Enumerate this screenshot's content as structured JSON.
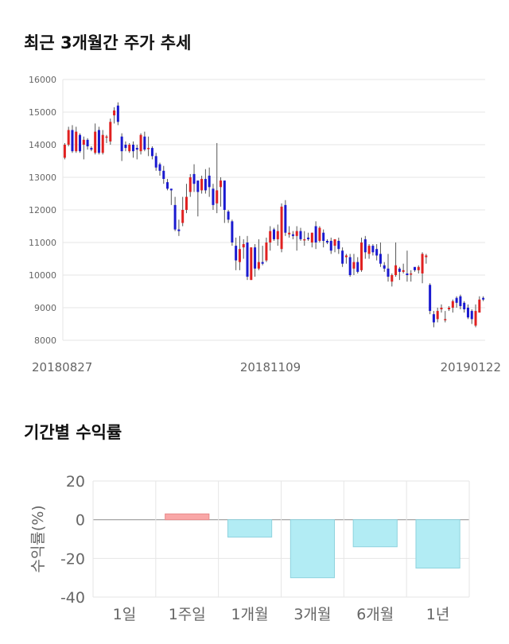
{
  "price_section": {
    "title": "최근 3개월간 주가 추세"
  },
  "returns_section": {
    "title": "기간별 수익률"
  },
  "colors": {
    "up": "#e02020",
    "down": "#1a1ad0",
    "wick": "#555555",
    "grid": "#e6e6e6",
    "bar_positive": "#f9a7a7",
    "bar_negative": "#b2ecf4"
  },
  "chart_data": [
    {
      "type": "candlestick",
      "title": "최근 3개월간 주가 추세",
      "ylim": [
        8000,
        16000
      ],
      "yticks": [
        8000,
        9000,
        10000,
        11000,
        12000,
        13000,
        14000,
        15000,
        16000
      ],
      "xtick_labels": [
        "20180827",
        "20181109",
        "20190122"
      ],
      "candles": [
        [
          13600,
          14000,
          13550,
          14050
        ],
        [
          14000,
          14450,
          13950,
          14550
        ],
        [
          14450,
          13800,
          13750,
          14600
        ],
        [
          13800,
          14400,
          13750,
          14550
        ],
        [
          14300,
          13800,
          13750,
          14350
        ],
        [
          14000,
          14150,
          13550,
          14250
        ],
        [
          14150,
          13950,
          13850,
          14200
        ],
        [
          13900,
          13850,
          13800,
          13950
        ],
        [
          13750,
          14400,
          13700,
          14650
        ],
        [
          14450,
          13750,
          13700,
          14550
        ],
        [
          13750,
          14300,
          13700,
          14450
        ],
        [
          14250,
          14250,
          14050,
          14300
        ],
        [
          14100,
          14700,
          14000,
          14800
        ],
        [
          14900,
          15050,
          14650,
          15150
        ],
        [
          15200,
          14700,
          14600,
          15300
        ],
        [
          14250,
          13800,
          13500,
          14350
        ],
        [
          14000,
          13900,
          13800,
          14100
        ],
        [
          13800,
          14000,
          13750,
          14050
        ],
        [
          14000,
          13800,
          13600,
          14100
        ],
        [
          13900,
          13850,
          13550,
          14000
        ],
        [
          13800,
          14300,
          13700,
          14350
        ],
        [
          14250,
          13850,
          13800,
          14400
        ],
        [
          13900,
          13900,
          13650,
          14250
        ],
        [
          13900,
          13650,
          13550,
          13950
        ],
        [
          13650,
          13300,
          13200,
          13750
        ],
        [
          13400,
          13200,
          13050,
          13450
        ],
        [
          13200,
          12950,
          12800,
          13350
        ],
        [
          12850,
          12650,
          12600,
          12950
        ],
        [
          12650,
          12600,
          12150,
          12650
        ],
        [
          12150,
          11400,
          11350,
          12400
        ],
        [
          11400,
          11350,
          11200,
          11700
        ],
        [
          11600,
          12000,
          11500,
          12400
        ],
        [
          12000,
          12400,
          11900,
          12800
        ],
        [
          12550,
          13000,
          12400,
          13100
        ],
        [
          13100,
          12800,
          12550,
          13400
        ],
        [
          12900,
          12550,
          11800,
          12900
        ],
        [
          12600,
          12950,
          12500,
          13050
        ],
        [
          12950,
          12600,
          12500,
          13250
        ],
        [
          13050,
          12700,
          12400,
          13300
        ],
        [
          12650,
          12150,
          12000,
          12800
        ],
        [
          12200,
          12600,
          11900,
          14050
        ],
        [
          12700,
          12900,
          12100,
          13000
        ],
        [
          12900,
          12000,
          11600,
          12900
        ],
        [
          11950,
          11700,
          11600,
          12000
        ],
        [
          11650,
          11000,
          10900,
          11700
        ],
        [
          10900,
          10450,
          10150,
          11150
        ],
        [
          10400,
          10800,
          10150,
          11200
        ],
        [
          10850,
          10950,
          10500,
          11100
        ],
        [
          11000,
          9950,
          9850,
          11200
        ],
        [
          9850,
          10850,
          9850,
          10850
        ],
        [
          10850,
          10200,
          9950,
          10950
        ],
        [
          10200,
          10400,
          10150,
          11100
        ],
        [
          10400,
          10350,
          10300,
          10900
        ],
        [
          10450,
          11000,
          10400,
          11150
        ],
        [
          11000,
          11350,
          10750,
          11500
        ],
        [
          11400,
          11100,
          11050,
          11450
        ],
        [
          11100,
          11350,
          10900,
          11550
        ],
        [
          10800,
          12100,
          10700,
          12200
        ],
        [
          12150,
          11300,
          11200,
          12300
        ],
        [
          11250,
          11300,
          11150,
          11500
        ],
        [
          11250,
          11200,
          11100,
          11350
        ],
        [
          11200,
          11350,
          10750,
          11500
        ],
        [
          11350,
          11100,
          11050,
          11450
        ],
        [
          11100,
          11100,
          10900,
          11350
        ],
        [
          11150,
          11100,
          11050,
          11300
        ],
        [
          11000,
          11300,
          10850,
          11300
        ],
        [
          11500,
          11000,
          10800,
          11650
        ],
        [
          11050,
          11450,
          11000,
          11500
        ],
        [
          11300,
          11050,
          10850,
          11400
        ],
        [
          11050,
          11000,
          10950,
          11100
        ],
        [
          11050,
          10750,
          10650,
          11150
        ],
        [
          10900,
          11100,
          10700,
          11100
        ],
        [
          11050,
          10800,
          10650,
          11150
        ],
        [
          10750,
          10350,
          10250,
          10850
        ],
        [
          10550,
          10600,
          10350,
          10650
        ],
        [
          10550,
          10000,
          9950,
          10650
        ],
        [
          10200,
          10400,
          10000,
          10650
        ],
        [
          10400,
          10100,
          10050,
          10550
        ],
        [
          10150,
          11000,
          10100,
          11150
        ],
        [
          11100,
          10700,
          10500,
          11200
        ],
        [
          10650,
          10900,
          10500,
          10950
        ],
        [
          10900,
          10700,
          10600,
          10950
        ],
        [
          10800,
          10600,
          10450,
          10950
        ],
        [
          10650,
          10350,
          10250,
          11000
        ],
        [
          10300,
          10200,
          10100,
          10400
        ],
        [
          10200,
          9950,
          9800,
          10650
        ],
        [
          9800,
          10000,
          9650,
          10050
        ],
        [
          10000,
          10300,
          9950,
          11000
        ],
        [
          10200,
          10100,
          9850,
          10250
        ],
        [
          10100,
          10150,
          10050,
          10350
        ],
        [
          10050,
          10000,
          9800,
          10750
        ],
        [
          10050,
          10050,
          9800,
          10150
        ],
        [
          10250,
          10150,
          10100,
          10200
        ],
        [
          10150,
          10250,
          10050,
          10300
        ],
        [
          10050,
          10650,
          9750,
          10700
        ],
        [
          10550,
          10600,
          10350,
          10650
        ],
        [
          9700,
          8900,
          8800,
          9750
        ],
        [
          8800,
          8550,
          8400,
          8900
        ],
        [
          8650,
          8900,
          8550,
          9000
        ],
        [
          8950,
          9000,
          8850,
          9100
        ],
        [
          8650,
          8650,
          8550,
          8900
        ],
        [
          8950,
          9000,
          8900,
          9050
        ],
        [
          9000,
          9200,
          8850,
          9250
        ],
        [
          9300,
          9150,
          9000,
          9350
        ],
        [
          9350,
          9050,
          8950,
          9400
        ],
        [
          9150,
          8950,
          8850,
          9200
        ],
        [
          9000,
          8700,
          8650,
          9100
        ],
        [
          8900,
          8650,
          8500,
          8950
        ],
        [
          8450,
          8900,
          8400,
          9100
        ],
        [
          8850,
          9250,
          8850,
          9350
        ],
        [
          9300,
          9250,
          9200,
          9350
        ]
      ]
    },
    {
      "type": "bar",
      "title": "기간별 수익률",
      "ylabel": "수익률(%)",
      "ylim": [
        -40,
        20
      ],
      "yticks": [
        20,
        0,
        -20,
        -40
      ],
      "categories": [
        "1일",
        "1주일",
        "1개월",
        "3개월",
        "6개월",
        "1년"
      ],
      "values": [
        0,
        3,
        -9,
        -30,
        -14,
        -25
      ]
    }
  ]
}
